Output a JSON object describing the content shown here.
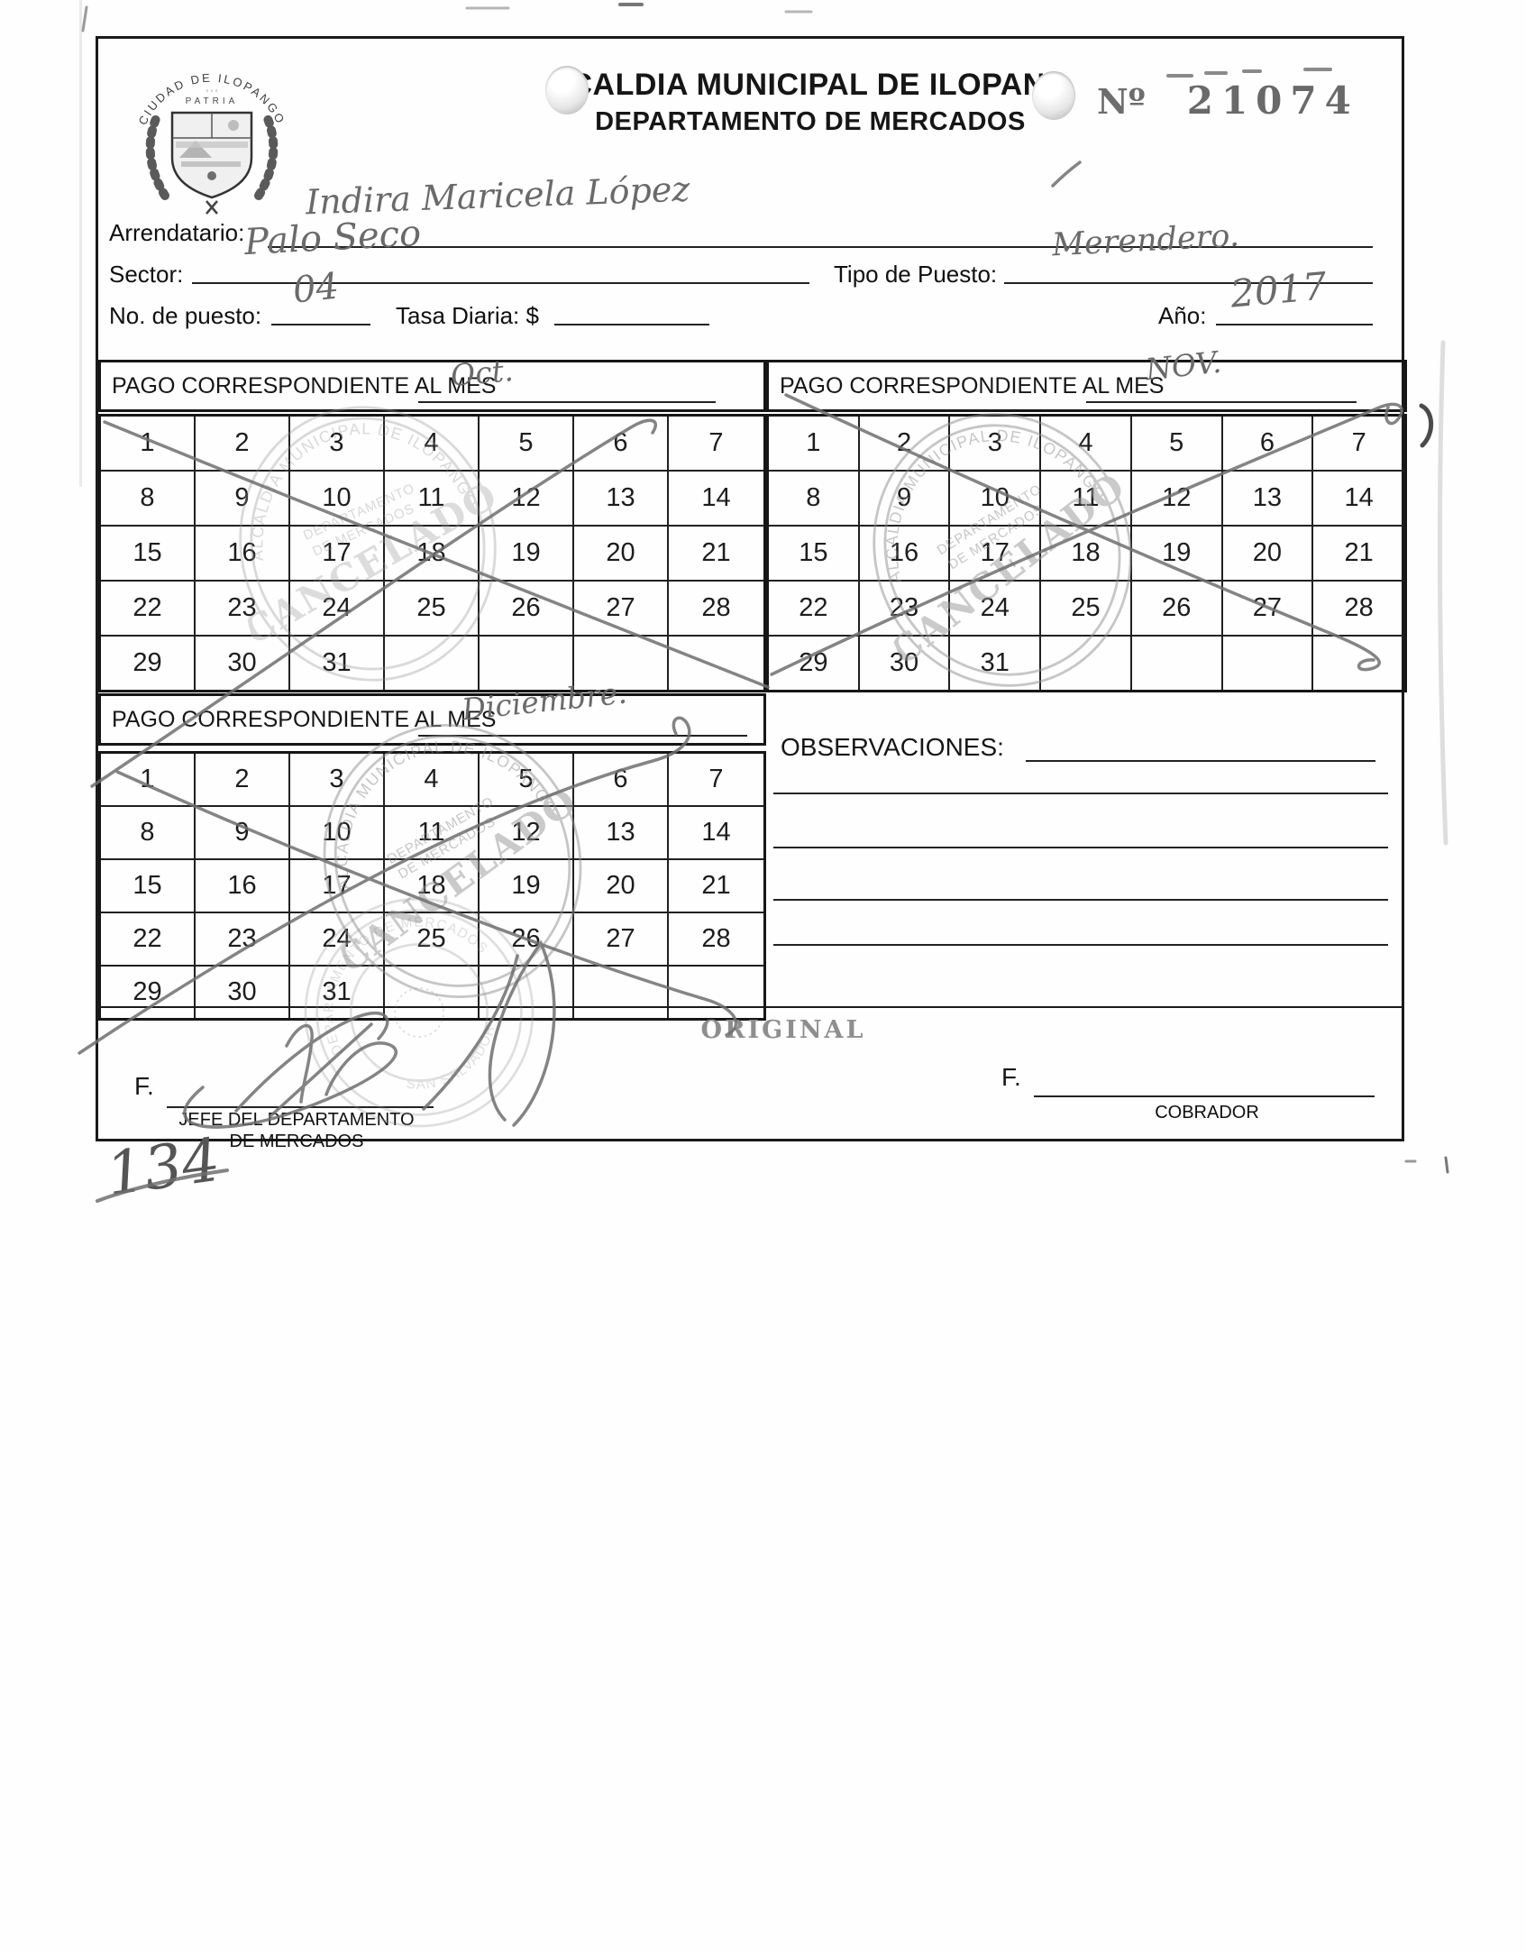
{
  "colors": {
    "pen_ink": "#6f6f6f",
    "stamp_ink": "#8f8f8f",
    "print_ink": "#1a1a1a"
  },
  "header": {
    "title": "LCALDIA MUNICIPAL DE ILOPANG",
    "subtitle": "DEPARTAMENTO DE MERCADOS",
    "number_label": "Nº",
    "number": "21074"
  },
  "crest": {
    "arc_text": "CIUDAD DE ILOPANGO",
    "motto": "PATRIA"
  },
  "fields": {
    "arrendatario_label": "Arrendatario:",
    "arrendatario_value": "Indira Maricela López",
    "sector_label": "Sector:",
    "sector_value": "Palo Seco",
    "tipo_label": "Tipo de Puesto:",
    "tipo_value": "Merendero.",
    "puesto_label": "No. de puesto:",
    "puesto_value": "04",
    "tasa_label": "Tasa Diaria: $",
    "tasa_value": "",
    "anio_label": "Año:",
    "anio_value": "2017"
  },
  "calendar_label": "PAGO CORRESPONDIENTE AL MES",
  "calendars": [
    {
      "month": "Oct."
    },
    {
      "month": "NOV."
    },
    {
      "month": "Diciembre."
    }
  ],
  "calendar_days": [
    [
      "1",
      "2",
      "3",
      "4",
      "5",
      "6",
      "7"
    ],
    [
      "8",
      "9",
      "10",
      "11",
      "12",
      "13",
      "14"
    ],
    [
      "15",
      "16",
      "17",
      "18",
      "19",
      "20",
      "21"
    ],
    [
      "22",
      "23",
      "24",
      "25",
      "26",
      "27",
      "28"
    ],
    [
      "29",
      "30",
      "31",
      "",
      "",
      "",
      ""
    ]
  ],
  "stamp": {
    "line1": "ALCALDIA MUNICIPAL DE ILOPANGO",
    "line2a": "DEPARTAMENTO",
    "line2b": "DE MERCADOS",
    "line3": "CANCELADO"
  },
  "seal": {
    "arc_top": "DEPARTAMENTO DE MERCADOS",
    "arc_bottom": "SAN SALVADOR"
  },
  "observations": {
    "label": "OBSERVACIONES:"
  },
  "footer": {
    "copy_label": "ORIGINAL",
    "sig_prefix": "F.",
    "left_role_line1": "JEFE DEL DEPARTAMENTO",
    "left_role_line2": "DE MERCADOS",
    "right_role": "COBRADOR",
    "handwritten_number": "134"
  }
}
